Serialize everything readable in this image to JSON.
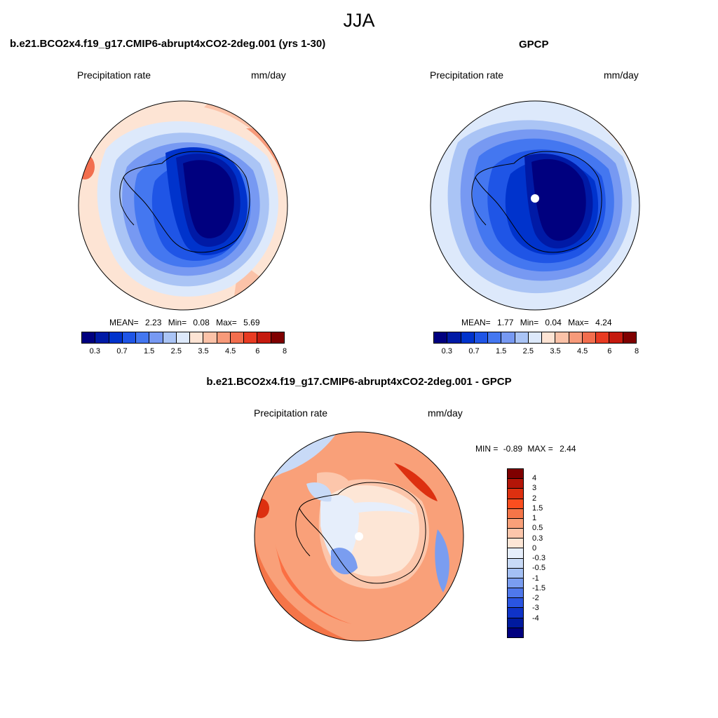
{
  "season": "JJA",
  "panels": [
    {
      "title": "b.e21.BCO2x4.f19_g17.CMIP6-abrupt4xCO2-2deg.001 (yrs 1-30)",
      "variable": "Precipitation rate",
      "units": "mm/day",
      "stats": {
        "mean_label": "MEAN=",
        "mean": "2.23",
        "min_label": "Min=",
        "min": "0.08",
        "max_label": "Max=",
        "max": "5.69"
      }
    },
    {
      "title": "GPCP",
      "variable": "Precipitation rate",
      "units": "mm/day",
      "stats": {
        "mean_label": "MEAN=",
        "mean": "1.77",
        "min_label": "Min=",
        "min": "0.04",
        "max_label": "Max=",
        "max": "4.24"
      }
    }
  ],
  "precip_colorbar": {
    "colors": [
      "#00007f",
      "#001aa6",
      "#0033cc",
      "#1f55e6",
      "#4477f0",
      "#7799f2",
      "#aac4f5",
      "#dde9fb",
      "#fde4d4",
      "#fbc2a8",
      "#f79a7a",
      "#f26e4e",
      "#e83b22",
      "#c51a0e",
      "#7f0000"
    ],
    "tick_labels": [
      "0.3",
      "0.7",
      "1.5",
      "2.5",
      "3.5",
      "4.5",
      "6",
      "8"
    ]
  },
  "difference": {
    "title": "b.e21.BCO2x4.f19_g17.CMIP6-abrupt4xCO2-2deg.001 - GPCP",
    "variable": "Precipitation rate",
    "units": "mm/day",
    "stats": {
      "min_label": "MIN =",
      "min": "-0.89",
      "max_label": "MAX =",
      "max": "2.44"
    },
    "colorbar": {
      "colors": [
        "#7f0000",
        "#b31508",
        "#dd3010",
        "#fb4e1f",
        "#f57548",
        "#f9a079",
        "#fcc6ab",
        "#fde6d6",
        "#e6eefb",
        "#c8daf7",
        "#a4c0f4",
        "#7a9df0",
        "#4f78eb",
        "#2a55e2",
        "#0f33c8",
        "#001a9e",
        "#00007f"
      ],
      "tick_labels": [
        "4",
        "3",
        "2",
        "1.5",
        "1",
        "0.5",
        "0.3",
        "0",
        "-0.3",
        "-0.5",
        "-1",
        "-1.5",
        "-2",
        "-3",
        "-4"
      ]
    }
  }
}
